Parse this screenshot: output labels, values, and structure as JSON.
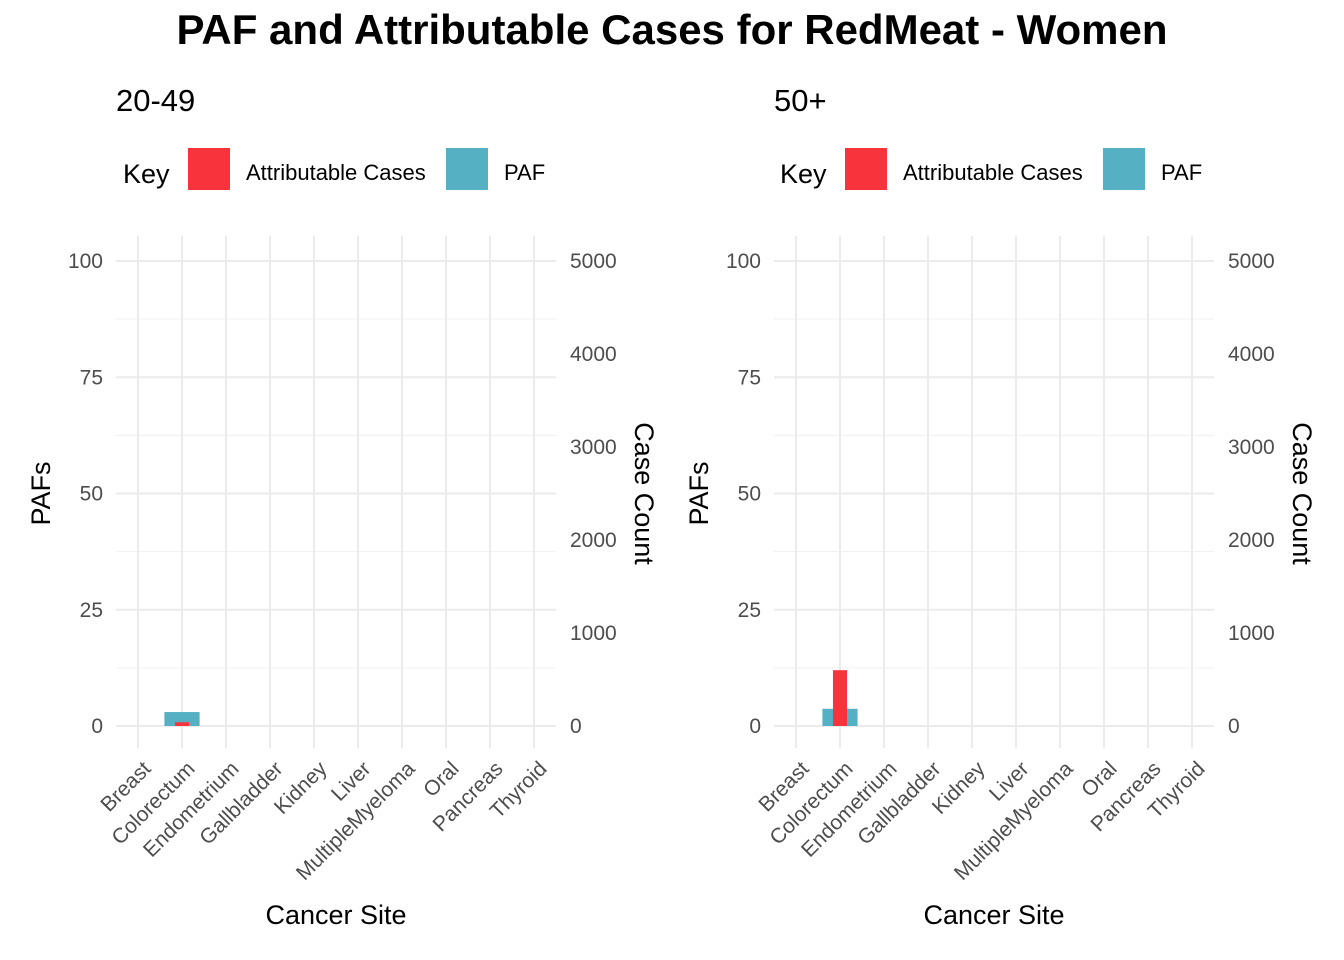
{
  "title": "PAF and Attributable Cases for RedMeat - Women",
  "legend": {
    "title": "Key",
    "items": [
      {
        "label": "Attributable Cases",
        "color": "#F8333C"
      },
      {
        "label": "PAF",
        "color": "#55B0C3"
      }
    ]
  },
  "chart_data": [
    {
      "type": "bar",
      "title": "20-49",
      "xlabel": "Cancer Site",
      "ylabel": "PAFs",
      "y2label": "Case Count",
      "categories": [
        "Breast",
        "Colorectum",
        "Endometrium",
        "Gallbladder",
        "Kidney",
        "Liver",
        "MultipleMyeloma",
        "Oral",
        "Pancreas",
        "Thyroid"
      ],
      "ylim": [
        0,
        100
      ],
      "y2lim": [
        0,
        5000
      ],
      "yticks": [
        "0",
        "25",
        "50",
        "75",
        "100"
      ],
      "y2ticks": [
        "0",
        "1000",
        "2000",
        "3000",
        "4000",
        "5000"
      ],
      "grid": true,
      "series": [
        {
          "name": "PAF",
          "axis": "left",
          "values": [
            0,
            3.0,
            0,
            0,
            0,
            0,
            0,
            0,
            0,
            0
          ]
        },
        {
          "name": "Attributable Cases",
          "axis": "right",
          "values": [
            0,
            40,
            0,
            0,
            0,
            0,
            0,
            0,
            0,
            0
          ]
        }
      ]
    },
    {
      "type": "bar",
      "title": "50+",
      "xlabel": "Cancer Site",
      "ylabel": "PAFs",
      "y2label": "Case Count",
      "categories": [
        "Breast",
        "Colorectum",
        "Endometrium",
        "Gallbladder",
        "Kidney",
        "Liver",
        "MultipleMyeloma",
        "Oral",
        "Pancreas",
        "Thyroid"
      ],
      "ylim": [
        0,
        100
      ],
      "y2lim": [
        0,
        5000
      ],
      "yticks": [
        "0",
        "25",
        "50",
        "75",
        "100"
      ],
      "y2ticks": [
        "0",
        "1000",
        "2000",
        "3000",
        "4000",
        "5000"
      ],
      "grid": true,
      "series": [
        {
          "name": "PAF",
          "axis": "left",
          "values": [
            0,
            3.7,
            0,
            0,
            0,
            0,
            0,
            0,
            0,
            0
          ]
        },
        {
          "name": "Attributable Cases",
          "axis": "right",
          "values": [
            0,
            600,
            0,
            0,
            0,
            0,
            0,
            0,
            0,
            0
          ]
        }
      ]
    }
  ]
}
